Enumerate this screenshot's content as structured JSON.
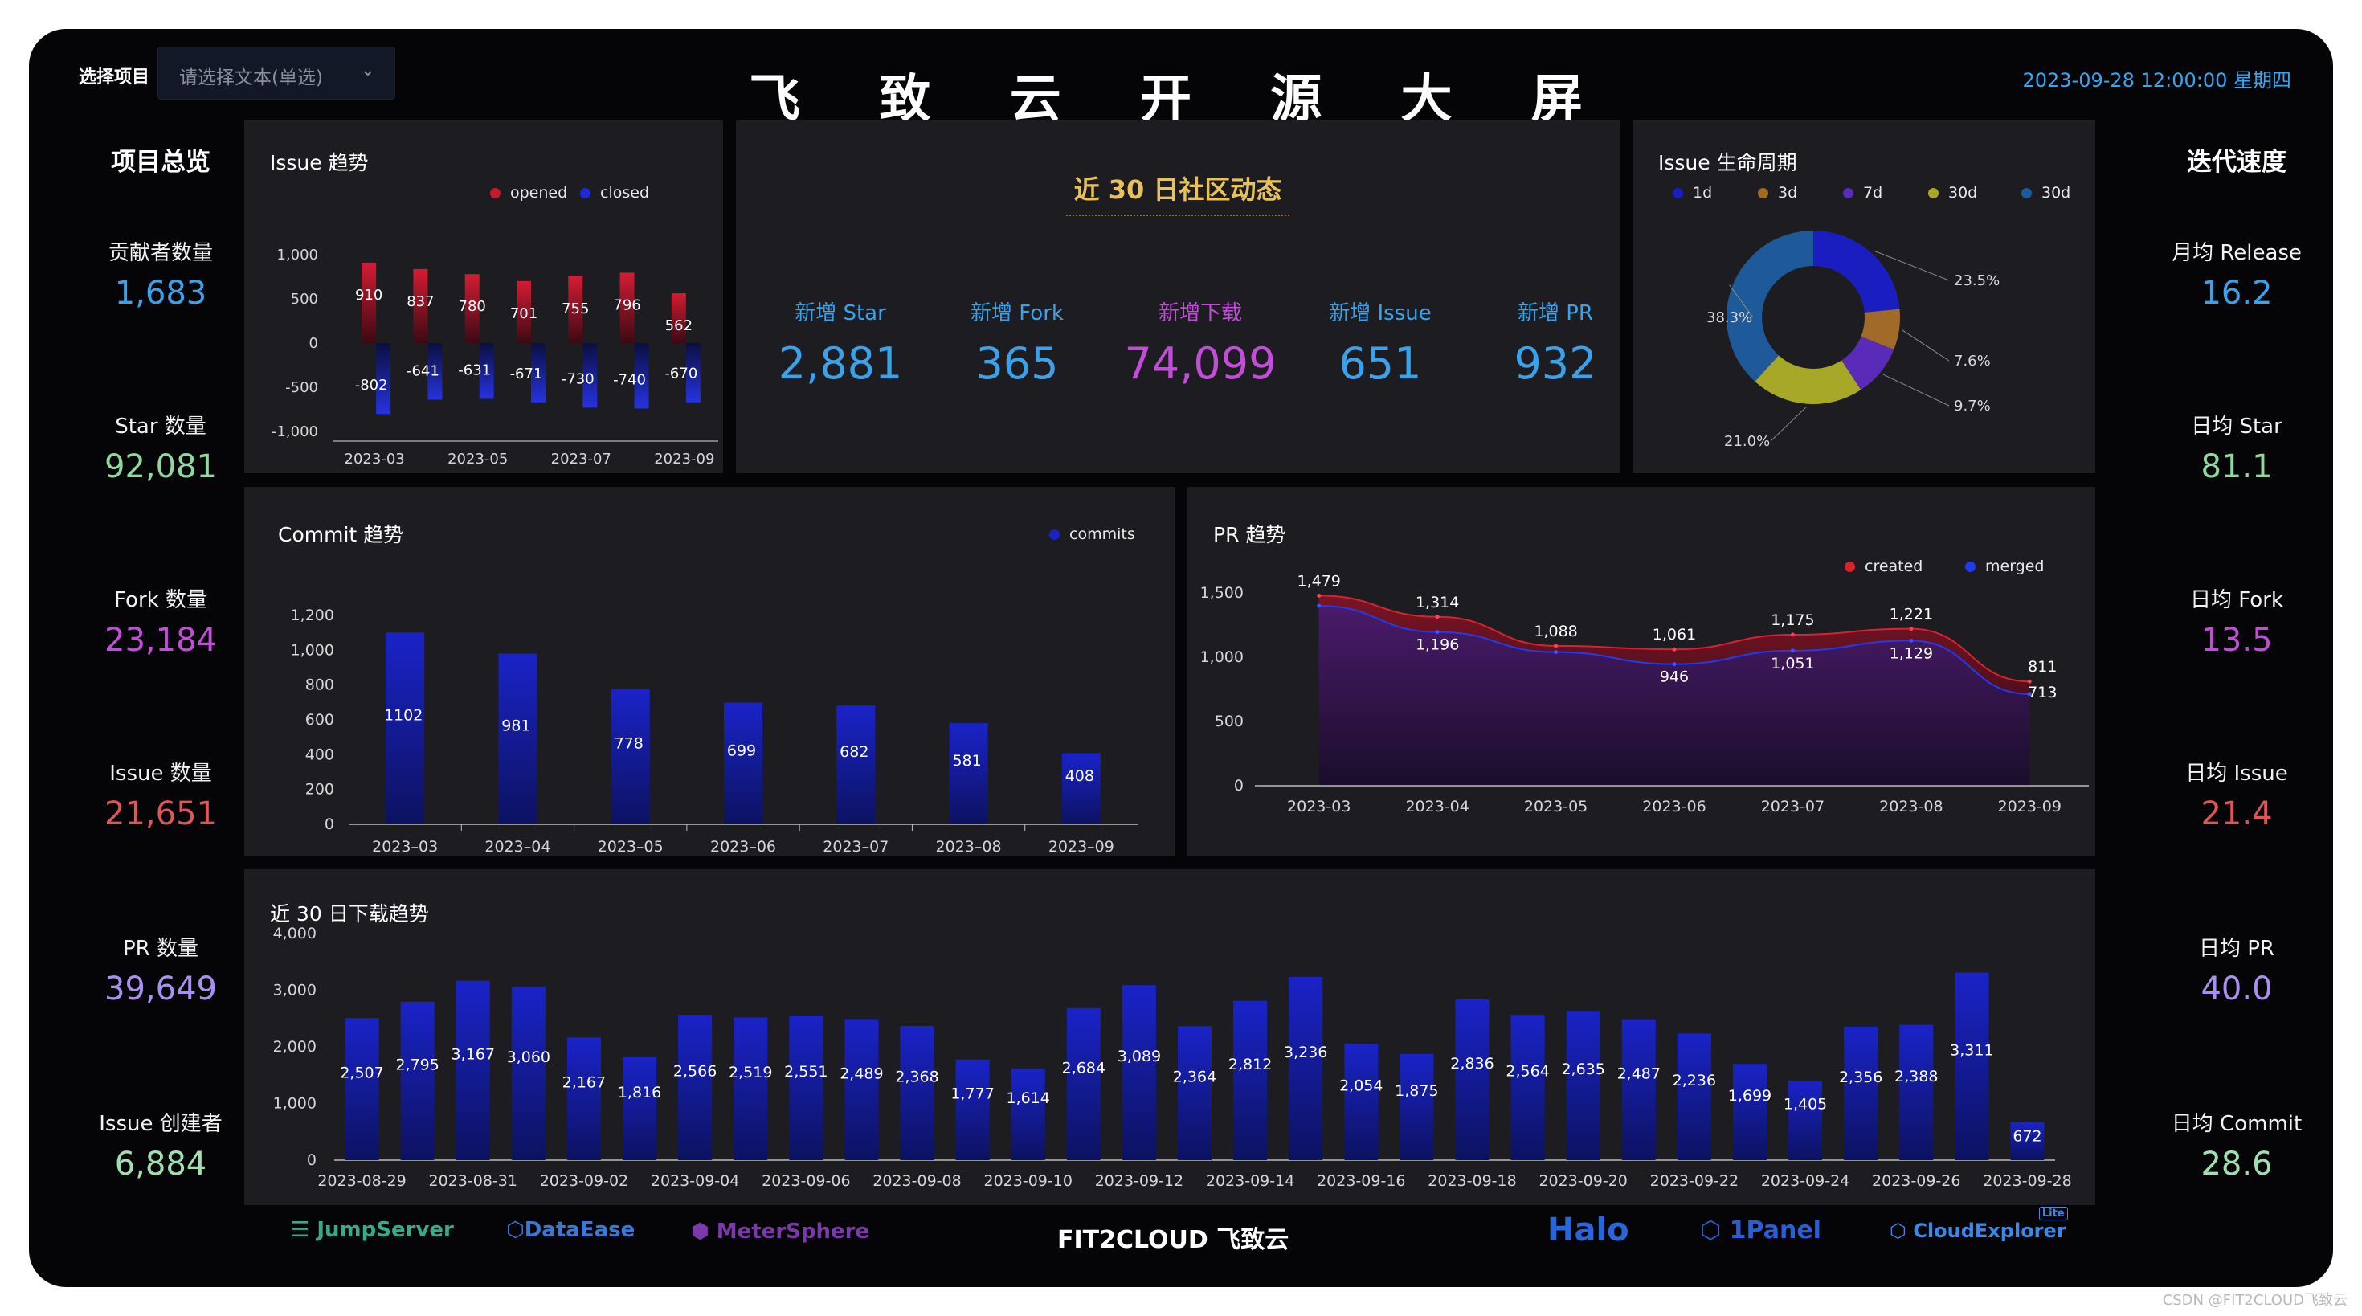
{
  "header": {
    "title": "飞 致 云 开 源 大 屏",
    "select_label": "选择项目",
    "select_placeholder": "请选择文本(单选)",
    "datetime": "2023-09-28 12:00:00 星期四"
  },
  "left": {
    "title": "项目总览",
    "items": [
      {
        "label": "贡献者数量",
        "value": "1,683",
        "color": "#3aa2ea"
      },
      {
        "label": "Star 数量",
        "value": "92,081",
        "color": "#8fd8a0"
      },
      {
        "label": "Fork 数量",
        "value": "23,184",
        "color": "#c24dd8"
      },
      {
        "label": "Issue 数量",
        "value": "21,651",
        "color": "#e0545a"
      },
      {
        "label": "PR 数量",
        "value": "39,649",
        "color": "#a98ff0"
      },
      {
        "label": "Issue 创建者",
        "value": "6,884",
        "color": "#9fe0b0"
      }
    ]
  },
  "right": {
    "title": "迭代速度",
    "items": [
      {
        "label": "月均 Release",
        "value": "16.2",
        "color": "#3aa2ea"
      },
      {
        "label": "日均 Star",
        "value": "81.1",
        "color": "#8fd8a0"
      },
      {
        "label": "日均 Fork",
        "value": "13.5",
        "color": "#c24dd8"
      },
      {
        "label": "日均 Issue",
        "value": "21.4",
        "color": "#e0545a"
      },
      {
        "label": "日均 PR",
        "value": "40.0",
        "color": "#a98ff0"
      },
      {
        "label": "日均 Commit",
        "value": "28.6",
        "color": "#9fe0b0"
      }
    ]
  },
  "community": {
    "title": "近 30 日社区动态",
    "stats": [
      {
        "label": "新增 Star",
        "value": "2,881",
        "color": "#3aa2ea"
      },
      {
        "label": "新增 Fork",
        "value": "365",
        "color": "#3aa2ea"
      },
      {
        "label": "新增下载",
        "value": "74,099",
        "color": "#c24dd8"
      },
      {
        "label": "新增 Issue",
        "value": "651",
        "color": "#3aa2ea"
      },
      {
        "label": "新增 PR",
        "value": "932",
        "color": "#3aa2ea"
      }
    ]
  },
  "colors": {
    "opened": "#c21a2e",
    "closed": "#1f2ad6",
    "bar_blue": "#1a23c8",
    "created": "#d8222e",
    "merged": "#1f3cf0"
  },
  "chart_data": [
    {
      "id": "issue",
      "type": "bar",
      "title": "Issue 趋势",
      "legend": [
        "opened",
        "closed"
      ],
      "ticks": [
        "2023-03",
        "2023-05",
        "2023-07",
        "2023-09"
      ],
      "opened": [
        910,
        837,
        780,
        701,
        755,
        796,
        562
      ],
      "closed": [
        -802,
        -641,
        -631,
        -671,
        -730,
        -740,
        -670
      ],
      "opened_labels": [
        "910",
        "837",
        "780",
        "701",
        "755",
        "796",
        "562"
      ],
      "closed_labels": [
        "-802",
        "-641",
        "-631",
        "-671",
        "-730",
        "-740",
        "-670"
      ],
      "y_ticks": [
        "1,000",
        "500",
        "0",
        "-500",
        "-1,000"
      ],
      "ylim": [
        -1000,
        1000
      ]
    },
    {
      "id": "lifecycle",
      "type": "pie",
      "title": "Issue 生命周期",
      "legend": [
        "1d",
        "3d",
        "7d",
        "30d",
        "30d"
      ],
      "values": [
        23.5,
        7.6,
        9.7,
        21.0,
        38.3
      ],
      "labels": [
        "23.5%",
        "7.6%",
        "9.7%",
        "21.0%",
        "38.3%"
      ],
      "colors": [
        "#1a1ec0",
        "#a06a28",
        "#5a2ab8",
        "#a8a828",
        "#1e5a9a"
      ]
    },
    {
      "id": "commit",
      "type": "bar",
      "title": "Commit 趋势",
      "legend": [
        "commits"
      ],
      "categories": [
        "2023–03",
        "2023–04",
        "2023–05",
        "2023–06",
        "2023–07",
        "2023–08",
        "2023–09"
      ],
      "values": [
        1102,
        981,
        778,
        699,
        682,
        581,
        408
      ],
      "value_labels": [
        "1102",
        "981",
        "778",
        "699",
        "682",
        "581",
        "408"
      ],
      "y_ticks": [
        "1,200",
        "1,000",
        "800",
        "600",
        "400",
        "200",
        "0"
      ],
      "ylim": [
        0,
        1200
      ]
    },
    {
      "id": "pr",
      "type": "area",
      "title": "PR 趋势",
      "legend": [
        "created",
        "merged"
      ],
      "categories": [
        "2023-03",
        "2023-04",
        "2023-05",
        "2023-06",
        "2023-07",
        "2023-08",
        "2023-09"
      ],
      "created": [
        1479,
        1314,
        1088,
        1061,
        1175,
        1221,
        811
      ],
      "merged": [
        1400,
        1196,
        1040,
        946,
        1051,
        1129,
        713
      ],
      "created_labels": [
        "1,479",
        "1,314",
        "1,088",
        "1,061",
        "1,175",
        "1,221",
        "811"
      ],
      "merged_labels": [
        "",
        "1,196",
        "",
        "946",
        "1,051",
        "1,129",
        "713"
      ],
      "y_ticks": [
        "1,500",
        "1,000",
        "500",
        "0"
      ],
      "ylim": [
        0,
        1500
      ]
    },
    {
      "id": "downloads",
      "type": "bar",
      "title": "近 30 日下载趋势",
      "values": [
        2507,
        2795,
        3167,
        3060,
        2167,
        1816,
        2566,
        2519,
        2551,
        2489,
        2368,
        1777,
        1614,
        2684,
        3089,
        2364,
        2812,
        3236,
        2054,
        1875,
        2836,
        2564,
        2635,
        2487,
        2236,
        1699,
        1405,
        2356,
        2388,
        3311,
        672
      ],
      "value_labels": [
        "2,507",
        "2,795",
        "3,167",
        "3,060",
        "2,167",
        "1,816",
        "2,566",
        "2,519",
        "2,551",
        "2,489",
        "2,368",
        "1,777",
        "1,614",
        "2,684",
        "3,089",
        "2,364",
        "2,812",
        "3,236",
        "2,054",
        "1,875",
        "2,836",
        "2,564",
        "2,635",
        "2,487",
        "2,236",
        "1,699",
        "1,405",
        "2,356",
        "2,388",
        "3,311",
        "672"
      ],
      "ticks": [
        "2023-08-29",
        "2023-08-31",
        "2023-09-02",
        "2023-09-04",
        "2023-09-06",
        "2023-09-08",
        "2023-09-10",
        "2023-09-12",
        "2023-09-14",
        "2023-09-16",
        "2023-09-18",
        "2023-09-20",
        "2023-09-22",
        "2023-09-24",
        "2023-09-26",
        "2023-09-28"
      ],
      "y_ticks": [
        "4,000",
        "3,000",
        "2,000",
        "1,000",
        "0"
      ],
      "ylim": [
        0,
        4000
      ]
    }
  ],
  "footer": {
    "logos": [
      {
        "name": "JumpServer",
        "color": "#3aa98a"
      },
      {
        "name": "DataEase",
        "color": "#3a78d8"
      },
      {
        "name": "MeterSphere",
        "color": "#7a3aa8"
      },
      {
        "name": "FIT2CLOUD 飞致云",
        "color": "#ffffff"
      },
      {
        "name": "Halo",
        "color": "#2a66d8"
      },
      {
        "name": "1Panel",
        "color": "#2a5ed8"
      },
      {
        "name": "CloudExplorer",
        "color": "#3a88e8"
      }
    ],
    "lite_badge": "Lite",
    "watermark": "CSDN @FIT2CLOUD飞致云"
  }
}
